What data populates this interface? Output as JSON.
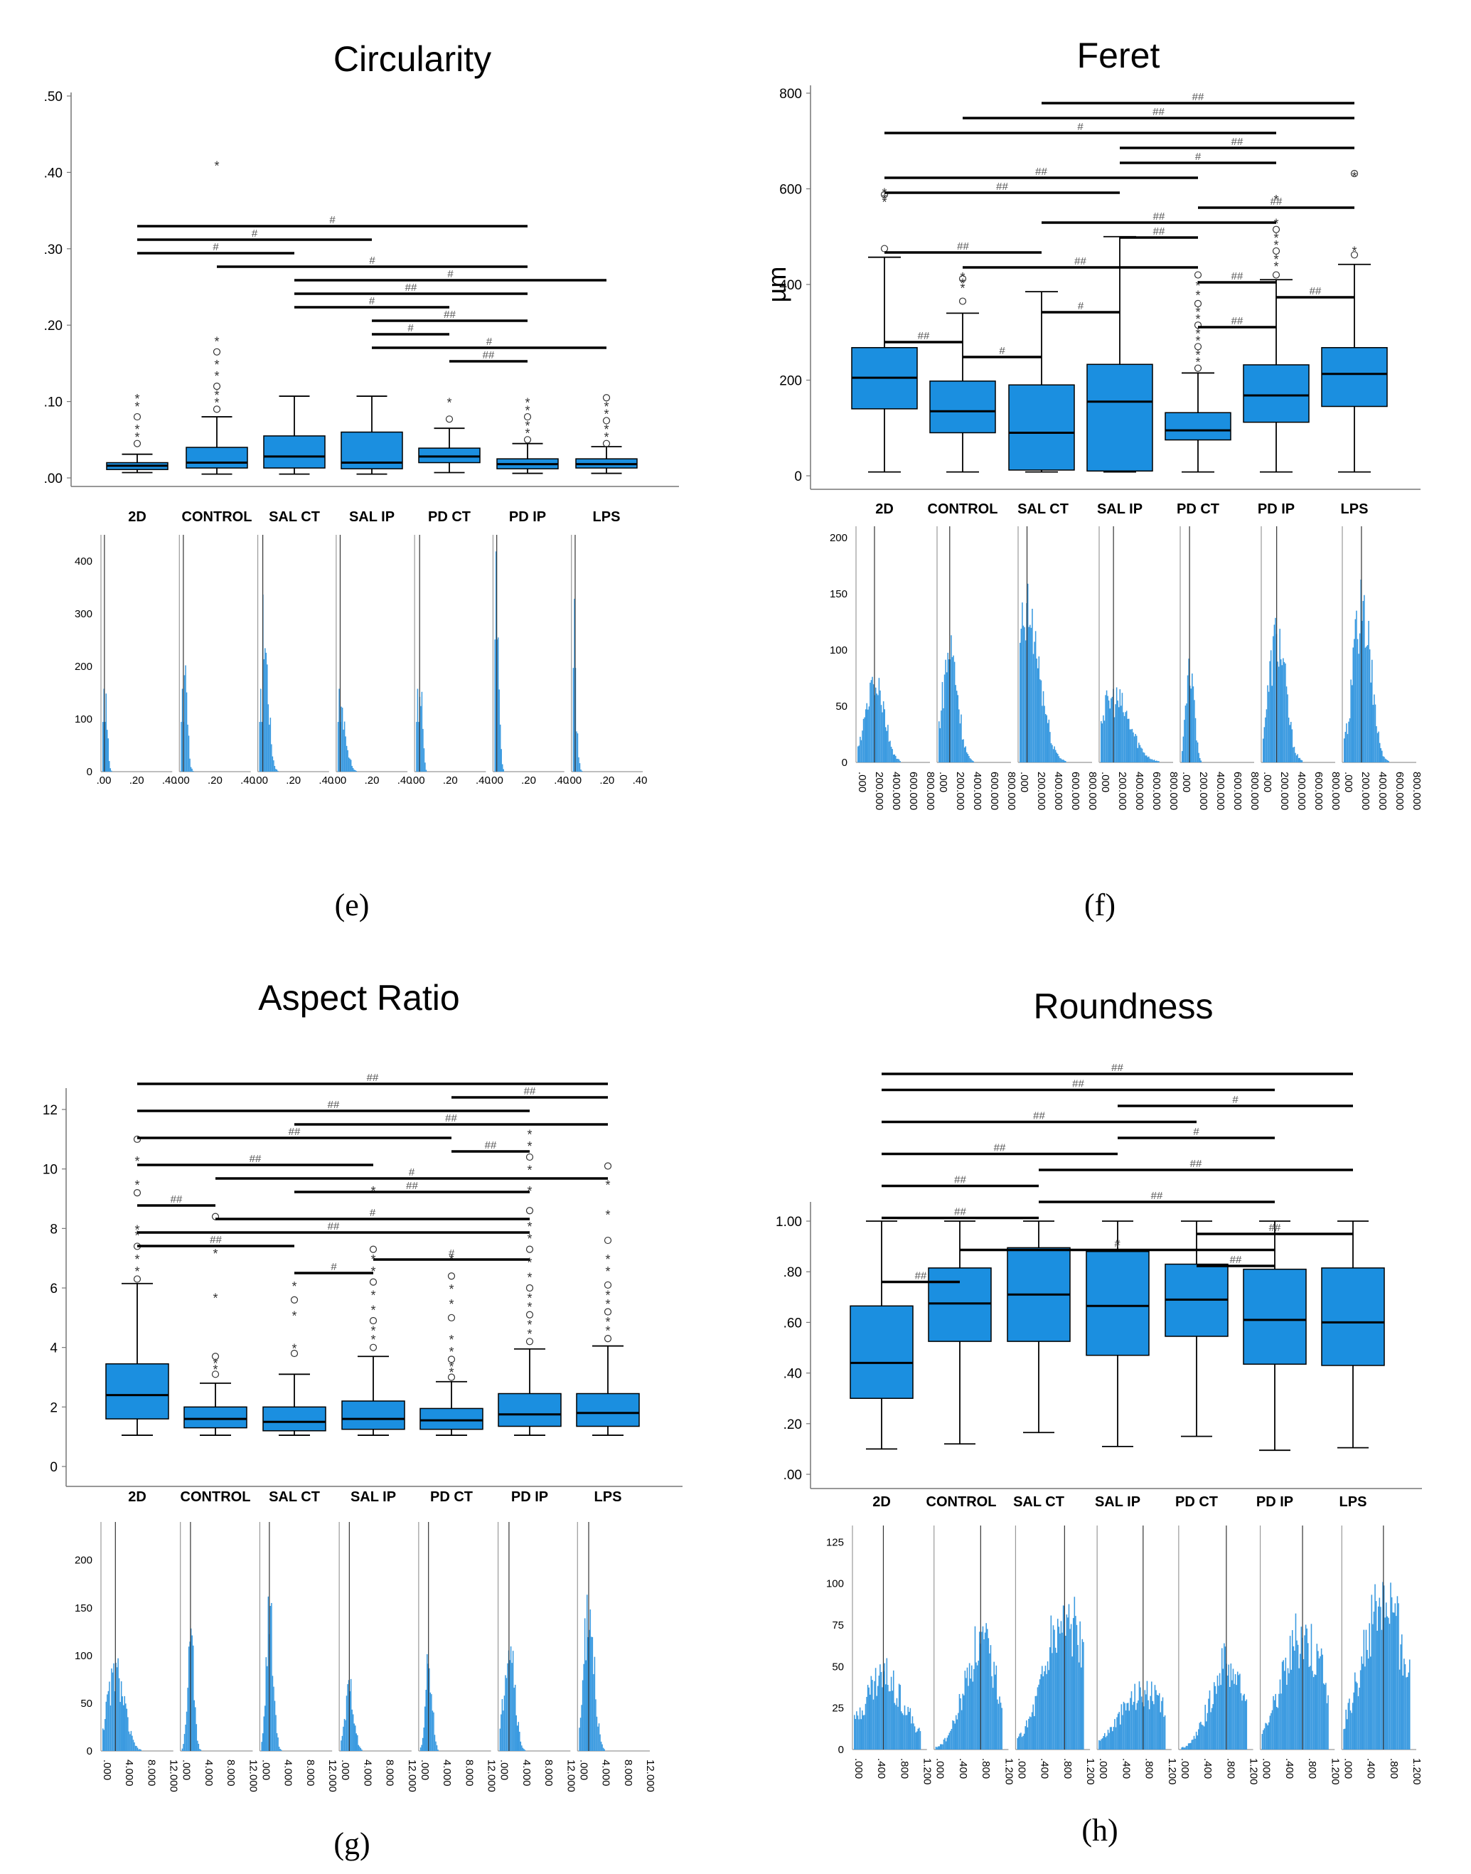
{
  "colors": {
    "box": "#1b8fe0",
    "hist": "#3a9ae0",
    "axis": "#000000",
    "line": "#000000"
  },
  "chart_data": [
    {
      "panel": "e",
      "type": "box",
      "title": "Circularity",
      "panel_label": "(e)",
      "categories": [
        "2D",
        "CONTROL",
        "SAL CT",
        "SAL IP",
        "PD CT",
        "PD IP",
        "LPS"
      ],
      "ylim": [
        0,
        0.5
      ],
      "yticks": [
        ".00",
        ".10",
        ".20",
        ".30",
        ".40",
        ".50"
      ],
      "ytick_values": [
        0,
        0.1,
        0.2,
        0.3,
        0.4,
        0.5
      ],
      "boxes": [
        {
          "low": 0.007,
          "q1": 0.011,
          "median": 0.016,
          "q3": 0.02,
          "high": 0.031
        },
        {
          "low": 0.005,
          "q1": 0.013,
          "median": 0.02,
          "q3": 0.04,
          "high": 0.08
        },
        {
          "low": 0.005,
          "q1": 0.013,
          "median": 0.028,
          "q3": 0.055,
          "high": 0.107
        },
        {
          "low": 0.005,
          "q1": 0.012,
          "median": 0.02,
          "q3": 0.06,
          "high": 0.107
        },
        {
          "low": 0.007,
          "q1": 0.02,
          "median": 0.028,
          "q3": 0.039,
          "high": 0.065
        },
        {
          "low": 0.006,
          "q1": 0.012,
          "median": 0.018,
          "q3": 0.025,
          "high": 0.045
        },
        {
          "low": 0.006,
          "q1": 0.013,
          "median": 0.018,
          "q3": 0.025,
          "high": 0.041
        }
      ],
      "outliers": [
        {
          "cat": 0,
          "values": [
            0.045,
            0.055,
            0.065,
            0.08,
            0.095,
            0.105
          ]
        },
        {
          "cat": 1,
          "values": [
            0.09,
            0.1,
            0.11,
            0.12,
            0.135,
            0.15,
            0.165,
            0.18,
            0.41
          ]
        },
        {
          "cat": 4,
          "values": [
            0.077,
            0.1
          ]
        },
        {
          "cat": 5,
          "values": [
            0.05,
            0.06,
            0.07,
            0.08,
            0.09,
            0.1
          ]
        },
        {
          "cat": 6,
          "values": [
            0.045,
            0.055,
            0.065,
            0.075,
            0.085,
            0.095,
            0.105
          ]
        }
      ],
      "significance": [
        {
          "from": 0,
          "to": 5,
          "label": "#"
        },
        {
          "from": 0,
          "to": 3,
          "label": "#"
        },
        {
          "from": 0,
          "to": 2,
          "label": "#"
        },
        {
          "from": 1,
          "to": 5,
          "label": "#"
        },
        {
          "from": 2,
          "to": 6,
          "label": "#"
        },
        {
          "from": 2,
          "to": 5,
          "label": "##"
        },
        {
          "from": 2,
          "to": 4,
          "label": "#"
        },
        {
          "from": 3,
          "to": 5,
          "label": "##"
        },
        {
          "from": 3,
          "to": 4,
          "label": "#"
        },
        {
          "from": 3,
          "to": 6,
          "label": "#"
        },
        {
          "from": 4,
          "to": 5,
          "label": "##"
        }
      ],
      "hist_yticks": [
        "0",
        "100",
        "200",
        "300",
        "400"
      ],
      "hist_ymax": 450,
      "hist_xticks": [
        ".00",
        ".20",
        ".40"
      ]
    },
    {
      "panel": "f",
      "type": "box",
      "title": "Feret",
      "panel_label": "(f)",
      "ylabel": "µm",
      "categories": [
        "2D",
        "CONTROL",
        "SAL CT",
        "SAL IP",
        "PD CT",
        "PD IP",
        "LPS"
      ],
      "ylim": [
        0,
        800
      ],
      "yticks": [
        "0",
        "200",
        "400",
        "600",
        "800"
      ],
      "ytick_values": [
        0,
        200,
        400,
        600,
        800
      ],
      "boxes": [
        {
          "low": 8,
          "q1": 140,
          "median": 205,
          "q3": 268,
          "high": 457
        },
        {
          "low": 8,
          "q1": 90,
          "median": 135,
          "q3": 198,
          "high": 340
        },
        {
          "low": 8,
          "q1": 12,
          "median": 90,
          "q3": 190,
          "high": 385
        },
        {
          "low": 8,
          "q1": 10,
          "median": 155,
          "q3": 233,
          "high": 500
        },
        {
          "low": 8,
          "q1": 75,
          "median": 95,
          "q3": 132,
          "high": 215
        },
        {
          "low": 8,
          "q1": 112,
          "median": 168,
          "q3": 232,
          "high": 410
        },
        {
          "low": 8,
          "q1": 145,
          "median": 213,
          "q3": 268,
          "high": 442
        }
      ],
      "outliers": [
        {
          "cat": 0,
          "values": [
            475,
            575,
            582,
            588,
            594
          ]
        },
        {
          "cat": 1,
          "values": [
            365,
            395,
            405,
            412,
            418
          ]
        },
        {
          "cat": 4,
          "values": [
            225,
            240,
            255,
            270,
            285,
            300,
            315,
            330,
            345,
            360,
            380,
            400,
            420
          ]
        },
        {
          "cat": 5,
          "values": [
            420,
            440,
            455,
            470,
            485,
            500,
            515,
            530,
            580
          ]
        },
        {
          "cat": 6,
          "values": [
            462,
            472,
            628,
            632
          ]
        }
      ],
      "significance": [
        {
          "from": 2,
          "to": 6,
          "label": "##"
        },
        {
          "from": 1,
          "to": 6,
          "label": "##"
        },
        {
          "from": 0,
          "to": 5,
          "label": "#"
        },
        {
          "from": 3,
          "to": 6,
          "label": "##"
        },
        {
          "from": 3,
          "to": 5,
          "label": "#"
        },
        {
          "from": 0,
          "to": 4,
          "label": "##"
        },
        {
          "from": 0,
          "to": 3,
          "label": "##"
        },
        {
          "from": 4,
          "to": 6,
          "label": "##"
        },
        {
          "from": 2,
          "to": 5,
          "label": "##"
        },
        {
          "from": 3,
          "to": 4,
          "label": "##"
        },
        {
          "from": 0,
          "to": 2,
          "label": "##"
        },
        {
          "from": 1,
          "to": 4,
          "label": "##"
        },
        {
          "from": 4,
          "to": 5,
          "label": "##"
        },
        {
          "from": 5,
          "to": 6,
          "label": "##"
        },
        {
          "from": 2,
          "to": 3,
          "label": "#"
        },
        {
          "from": 4,
          "to": 5,
          "label": "##"
        },
        {
          "from": 0,
          "to": 1,
          "label": "##"
        },
        {
          "from": 1,
          "to": 2,
          "label": "#"
        }
      ],
      "hist_yticks": [
        "0",
        "50",
        "100",
        "150",
        "200"
      ],
      "hist_ymax": 210,
      "hist_xticks": [
        ".000",
        "200.000",
        "400.000",
        "600.000",
        "800.000"
      ]
    },
    {
      "panel": "g",
      "type": "box",
      "title": "Aspect Ratio",
      "panel_label": "(g)",
      "categories": [
        "2D",
        "CONTROL",
        "SAL CT",
        "SAL IP",
        "PD CT",
        "PD IP",
        "LPS"
      ],
      "ylim": [
        0,
        12
      ],
      "yticks": [
        "0",
        "2",
        "4",
        "6",
        "8",
        "10",
        "12"
      ],
      "ytick_values": [
        0,
        2,
        4,
        6,
        8,
        10,
        12
      ],
      "boxes": [
        {
          "low": 1.05,
          "q1": 1.6,
          "median": 2.4,
          "q3": 3.45,
          "high": 6.15
        },
        {
          "low": 1.05,
          "q1": 1.3,
          "median": 1.6,
          "q3": 2.0,
          "high": 2.8
        },
        {
          "low": 1.05,
          "q1": 1.2,
          "median": 1.5,
          "q3": 2.0,
          "high": 3.1
        },
        {
          "low": 1.05,
          "q1": 1.25,
          "median": 1.6,
          "q3": 2.2,
          "high": 3.7
        },
        {
          "low": 1.05,
          "q1": 1.25,
          "median": 1.55,
          "q3": 1.95,
          "high": 2.85
        },
        {
          "low": 1.05,
          "q1": 1.35,
          "median": 1.75,
          "q3": 2.45,
          "high": 3.95
        },
        {
          "low": 1.05,
          "q1": 1.35,
          "median": 1.8,
          "q3": 2.45,
          "high": 4.05
        }
      ],
      "outliers": [
        {
          "cat": 0,
          "values": [
            6.3,
            6.6,
            7.0,
            7.4,
            7.8,
            8.0,
            9.2,
            9.5,
            10.3,
            11.0
          ]
        },
        {
          "cat": 1,
          "values": [
            3.1,
            3.3,
            3.5,
            3.7,
            5.7,
            7.2,
            8.4
          ]
        },
        {
          "cat": 2,
          "values": [
            3.8,
            4.0,
            5.1,
            5.6,
            6.1
          ]
        },
        {
          "cat": 3,
          "values": [
            4.0,
            4.3,
            4.6,
            4.9,
            5.3,
            5.8,
            6.2,
            6.6,
            7.0,
            7.3,
            9.3
          ]
        },
        {
          "cat": 4,
          "values": [
            3.0,
            3.2,
            3.4,
            3.6,
            3.9,
            4.3,
            5.0,
            5.5,
            6.0,
            6.4,
            7.0
          ]
        },
        {
          "cat": 5,
          "values": [
            4.2,
            4.5,
            4.8,
            5.1,
            5.4,
            5.7,
            6.0,
            6.4,
            6.9,
            7.3,
            7.7,
            8.1,
            8.6,
            9.3,
            10.0,
            10.4,
            10.8,
            11.2
          ]
        },
        {
          "cat": 6,
          "values": [
            4.3,
            4.6,
            4.9,
            5.2,
            5.5,
            5.8,
            6.1,
            6.6,
            7.0,
            7.6,
            8.5,
            9.5,
            10.1
          ]
        }
      ],
      "significance": [
        {
          "from": 0,
          "to": 6,
          "label": "##"
        },
        {
          "from": 4,
          "to": 6,
          "label": "##"
        },
        {
          "from": 0,
          "to": 5,
          "label": "##"
        },
        {
          "from": 2,
          "to": 6,
          "label": "##"
        },
        {
          "from": 0,
          "to": 4,
          "label": "##"
        },
        {
          "from": 4,
          "to": 5,
          "label": "##"
        },
        {
          "from": 0,
          "to": 3,
          "label": "##"
        },
        {
          "from": 1,
          "to": 6,
          "label": "#"
        },
        {
          "from": 2,
          "to": 5,
          "label": "##"
        },
        {
          "from": 0,
          "to": 1,
          "label": "##"
        },
        {
          "from": 1,
          "to": 5,
          "label": "#"
        },
        {
          "from": 0,
          "to": 5,
          "label": "##"
        },
        {
          "from": 0,
          "to": 2,
          "label": "##"
        },
        {
          "from": 3,
          "to": 5,
          "label": "#"
        },
        {
          "from": 2,
          "to": 3,
          "label": "#"
        }
      ],
      "hist_yticks": [
        "0",
        "50",
        "100",
        "150",
        "200"
      ],
      "hist_ymax": 240,
      "hist_xticks": [
        ".000",
        "4.000",
        "8.000",
        "12.000"
      ]
    },
    {
      "panel": "h",
      "type": "box",
      "title": "Roundness",
      "panel_label": "(h)",
      "categories": [
        "2D",
        "CONTROL",
        "SAL CT",
        "SAL IP",
        "PD CT",
        "PD IP",
        "LPS"
      ],
      "ylim": [
        0,
        1.0
      ],
      "yticks": [
        ".00",
        ".20",
        ".40",
        ".60",
        ".80",
        "1.00"
      ],
      "ytick_values": [
        0,
        0.2,
        0.4,
        0.6,
        0.8,
        1.0
      ],
      "boxes": [
        {
          "low": 0.1,
          "q1": 0.3,
          "median": 0.44,
          "q3": 0.665,
          "high": 1.0
        },
        {
          "low": 0.12,
          "q1": 0.525,
          "median": 0.675,
          "q3": 0.815,
          "high": 1.0
        },
        {
          "low": 0.165,
          "q1": 0.525,
          "median": 0.71,
          "q3": 0.895,
          "high": 1.0
        },
        {
          "low": 0.11,
          "q1": 0.47,
          "median": 0.665,
          "q3": 0.88,
          "high": 1.0
        },
        {
          "low": 0.15,
          "q1": 0.545,
          "median": 0.69,
          "q3": 0.83,
          "high": 1.0
        },
        {
          "low": 0.095,
          "q1": 0.435,
          "median": 0.61,
          "q3": 0.81,
          "high": 1.0
        },
        {
          "low": 0.105,
          "q1": 0.43,
          "median": 0.6,
          "q3": 0.815,
          "high": 1.0
        }
      ],
      "outliers": [],
      "significance": [
        {
          "from": 0,
          "to": 6,
          "label": "##"
        },
        {
          "from": 0,
          "to": 5,
          "label": "##"
        },
        {
          "from": 3,
          "to": 6,
          "label": "#"
        },
        {
          "from": 0,
          "to": 4,
          "label": "##"
        },
        {
          "from": 3,
          "to": 5,
          "label": "#"
        },
        {
          "from": 0,
          "to": 3,
          "label": "##"
        },
        {
          "from": 2,
          "to": 6,
          "label": "##"
        },
        {
          "from": 0,
          "to": 2,
          "label": "##"
        },
        {
          "from": 2,
          "to": 5,
          "label": "##"
        },
        {
          "from": 0,
          "to": 2,
          "label": "##"
        },
        {
          "from": 4,
          "to": 6,
          "label": "##"
        },
        {
          "from": 1,
          "to": 5,
          "label": "#"
        },
        {
          "from": 4,
          "to": 5,
          "label": "##"
        },
        {
          "from": 0,
          "to": 1,
          "label": "##"
        }
      ],
      "hist_yticks": [
        "0",
        "25",
        "50",
        "75",
        "100",
        "125"
      ],
      "hist_ymax": 135,
      "hist_xticks": [
        ".000",
        ".400",
        ".800",
        "1.200"
      ]
    }
  ]
}
